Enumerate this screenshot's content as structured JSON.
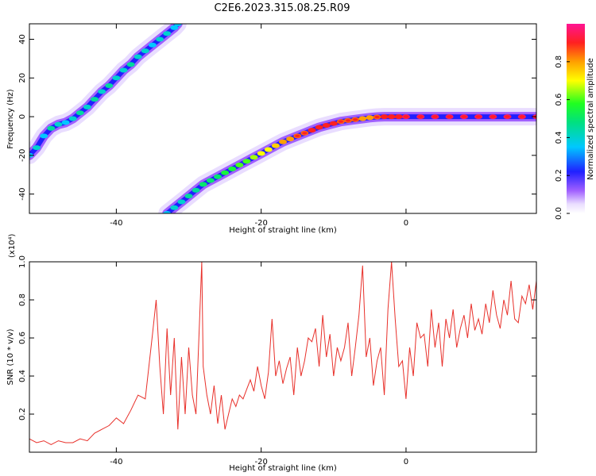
{
  "title": "C2E6.2023.315.08.25.R09",
  "colors": {
    "snr_line": "#e8302a",
    "ridge_core": "#ff2020",
    "axis": "#000000"
  },
  "chart_data": [
    {
      "type": "heatmap",
      "xlabel": "Height of straight line (km)",
      "ylabel": "Frequency (Hz)",
      "xlim": [
        -52,
        18
      ],
      "ylim": [
        -50,
        48
      ],
      "xticks": [
        -40,
        -20,
        0
      ],
      "yticks": [
        -40,
        -20,
        0,
        20,
        40
      ],
      "grid": false,
      "colorbar": {
        "label": "Normalized spectral amplitude",
        "ticks": [
          "0.0",
          "0.2",
          "0.4",
          "0.6",
          "0.8"
        ],
        "range": [
          0,
          1
        ]
      },
      "ridges": [
        {
          "name": "",
          "points": [
            [
              -52,
              -20
            ],
            [
              -51,
              -16
            ],
            [
              -50,
              -10
            ],
            [
              -49,
              -6
            ],
            [
              -48,
              -4
            ],
            [
              -47,
              -3
            ],
            [
              -46,
              -1
            ],
            [
              -45,
              2
            ],
            [
              -44,
              5
            ],
            [
              -43,
              9
            ],
            [
              -42,
              13
            ],
            [
              -41,
              16
            ],
            [
              -40,
              20
            ],
            [
              -39,
              24
            ],
            [
              -38,
              27
            ],
            [
              -37,
              31
            ],
            [
              -36,
              34
            ],
            [
              -35,
              37
            ],
            [
              -34,
              40
            ],
            [
              -33,
              43
            ],
            [
              -32,
              46
            ],
            [
              -31.5,
              48
            ]
          ],
          "amplitude": [
            0.35,
            0.4,
            0.35,
            0.45,
            0.4,
            0.35,
            0.4,
            0.45,
            0.4,
            0.45,
            0.4,
            0.45,
            0.4,
            0.4,
            0.45,
            0.4,
            0.4,
            0.35,
            0.4,
            0.4,
            0.35,
            0.35
          ]
        },
        {
          "name": "",
          "points": [
            [
              -33,
              -50
            ],
            [
              -32,
              -47
            ],
            [
              -31,
              -44
            ],
            [
              -30,
              -41
            ],
            [
              -29,
              -38
            ],
            [
              -28,
              -35
            ],
            [
              -27,
              -33
            ],
            [
              -26,
              -31
            ],
            [
              -25,
              -29
            ],
            [
              -24,
              -27
            ],
            [
              -23,
              -25
            ],
            [
              -22,
              -23
            ],
            [
              -21,
              -21
            ],
            [
              -20,
              -19
            ],
            [
              -19,
              -17
            ],
            [
              -18,
              -15
            ],
            [
              -17,
              -13
            ],
            [
              -16,
              -11.5
            ],
            [
              -15,
              -10
            ],
            [
              -14,
              -8.5
            ],
            [
              -13,
              -7
            ],
            [
              -12,
              -5.5
            ],
            [
              -11,
              -4.5
            ],
            [
              -10,
              -3.5
            ],
            [
              -9,
              -2.5
            ],
            [
              -8,
              -2
            ],
            [
              -7,
              -1.5
            ],
            [
              -6,
              -1
            ],
            [
              -5,
              -0.5
            ],
            [
              -4,
              -0.2
            ],
            [
              -3,
              0
            ],
            [
              -2,
              0
            ],
            [
              -1,
              0
            ],
            [
              0,
              0
            ],
            [
              2,
              0
            ],
            [
              4,
              0
            ],
            [
              6,
              0
            ],
            [
              8,
              0
            ],
            [
              10,
              0
            ],
            [
              12,
              0
            ],
            [
              14,
              0
            ],
            [
              16,
              0
            ],
            [
              18,
              0
            ]
          ],
          "amplitude": [
            0.35,
            0.4,
            0.4,
            0.45,
            0.45,
            0.5,
            0.5,
            0.5,
            0.55,
            0.55,
            0.6,
            0.6,
            0.65,
            0.7,
            0.7,
            0.75,
            0.8,
            0.8,
            0.85,
            0.85,
            0.9,
            0.9,
            0.9,
            0.9,
            0.85,
            0.85,
            0.85,
            0.8,
            0.8,
            0.85,
            0.9,
            0.9,
            0.9,
            0.95,
            0.95,
            0.95,
            0.95,
            0.95,
            0.95,
            0.95,
            0.95,
            0.95,
            0.95
          ]
        }
      ]
    },
    {
      "type": "line",
      "xlabel": "Height of straight line (km)",
      "ylabel": "SNR (10 * v/v)",
      "y_multiplier": "(x10⁴)",
      "xlim": [
        -52,
        18
      ],
      "ylim": [
        0,
        1.0
      ],
      "xticks": [
        -40,
        -20,
        0
      ],
      "yticks": [
        0.2,
        0.4,
        0.6,
        0.8,
        1.0
      ],
      "grid": false,
      "series": [
        {
          "name": "",
          "x": [
            -52,
            -51,
            -50,
            -49,
            -48,
            -47,
            -46,
            -45,
            -44,
            -43,
            -42,
            -41,
            -40,
            -39,
            -38,
            -37,
            -36,
            -35,
            -34.5,
            -34,
            -33.5,
            -33,
            -32.5,
            -32,
            -31.5,
            -31,
            -30.5,
            -30,
            -29.5,
            -29,
            -28.5,
            -28.2,
            -28,
            -27.5,
            -27,
            -26.5,
            -26,
            -25.5,
            -25,
            -24.5,
            -24,
            -23.5,
            -23,
            -22.5,
            -22,
            -21.5,
            -21,
            -20.5,
            -20,
            -19.5,
            -19,
            -18.5,
            -18,
            -17.5,
            -17,
            -16.5,
            -16,
            -15.5,
            -15,
            -14.5,
            -14,
            -13.5,
            -13,
            -12.5,
            -12,
            -11.5,
            -11,
            -10.5,
            -10,
            -9.5,
            -9,
            -8.5,
            -8,
            -7.5,
            -7,
            -6.5,
            -6,
            -5.5,
            -5,
            -4.5,
            -4,
            -3.5,
            -3,
            -2.5,
            -2,
            -1.5,
            -1,
            -0.5,
            0,
            0.5,
            1,
            1.5,
            2,
            2.5,
            3,
            3.5,
            4,
            4.5,
            5,
            5.5,
            6,
            6.5,
            7,
            7.5,
            8,
            8.5,
            9,
            9.5,
            10,
            10.5,
            11,
            11.5,
            12,
            12.5,
            13,
            13.5,
            14,
            14.5,
            15,
            15.5,
            16,
            16.5,
            17,
            17.5,
            18
          ],
          "y": [
            0.07,
            0.05,
            0.06,
            0.04,
            0.06,
            0.05,
            0.05,
            0.07,
            0.06,
            0.1,
            0.12,
            0.14,
            0.18,
            0.15,
            0.22,
            0.3,
            0.28,
            0.62,
            0.8,
            0.45,
            0.2,
            0.65,
            0.3,
            0.6,
            0.12,
            0.5,
            0.2,
            0.55,
            0.3,
            0.2,
            0.7,
            1.0,
            0.45,
            0.3,
            0.2,
            0.35,
            0.15,
            0.3,
            0.12,
            0.2,
            0.28,
            0.24,
            0.3,
            0.28,
            0.33,
            0.38,
            0.32,
            0.45,
            0.35,
            0.28,
            0.42,
            0.7,
            0.4,
            0.48,
            0.36,
            0.44,
            0.5,
            0.3,
            0.55,
            0.4,
            0.48,
            0.6,
            0.58,
            0.65,
            0.45,
            0.72,
            0.5,
            0.62,
            0.4,
            0.55,
            0.48,
            0.55,
            0.68,
            0.4,
            0.55,
            0.72,
            0.98,
            0.5,
            0.6,
            0.35,
            0.48,
            0.55,
            0.3,
            0.75,
            1.0,
            0.7,
            0.45,
            0.48,
            0.28,
            0.55,
            0.4,
            0.68,
            0.6,
            0.62,
            0.45,
            0.75,
            0.55,
            0.68,
            0.45,
            0.7,
            0.6,
            0.75,
            0.55,
            0.65,
            0.72,
            0.6,
            0.78,
            0.64,
            0.7,
            0.62,
            0.78,
            0.68,
            0.85,
            0.72,
            0.65,
            0.8,
            0.72,
            0.9,
            0.7,
            0.68,
            0.82,
            0.78,
            0.88,
            0.75,
            0.9
          ]
        }
      ]
    }
  ]
}
